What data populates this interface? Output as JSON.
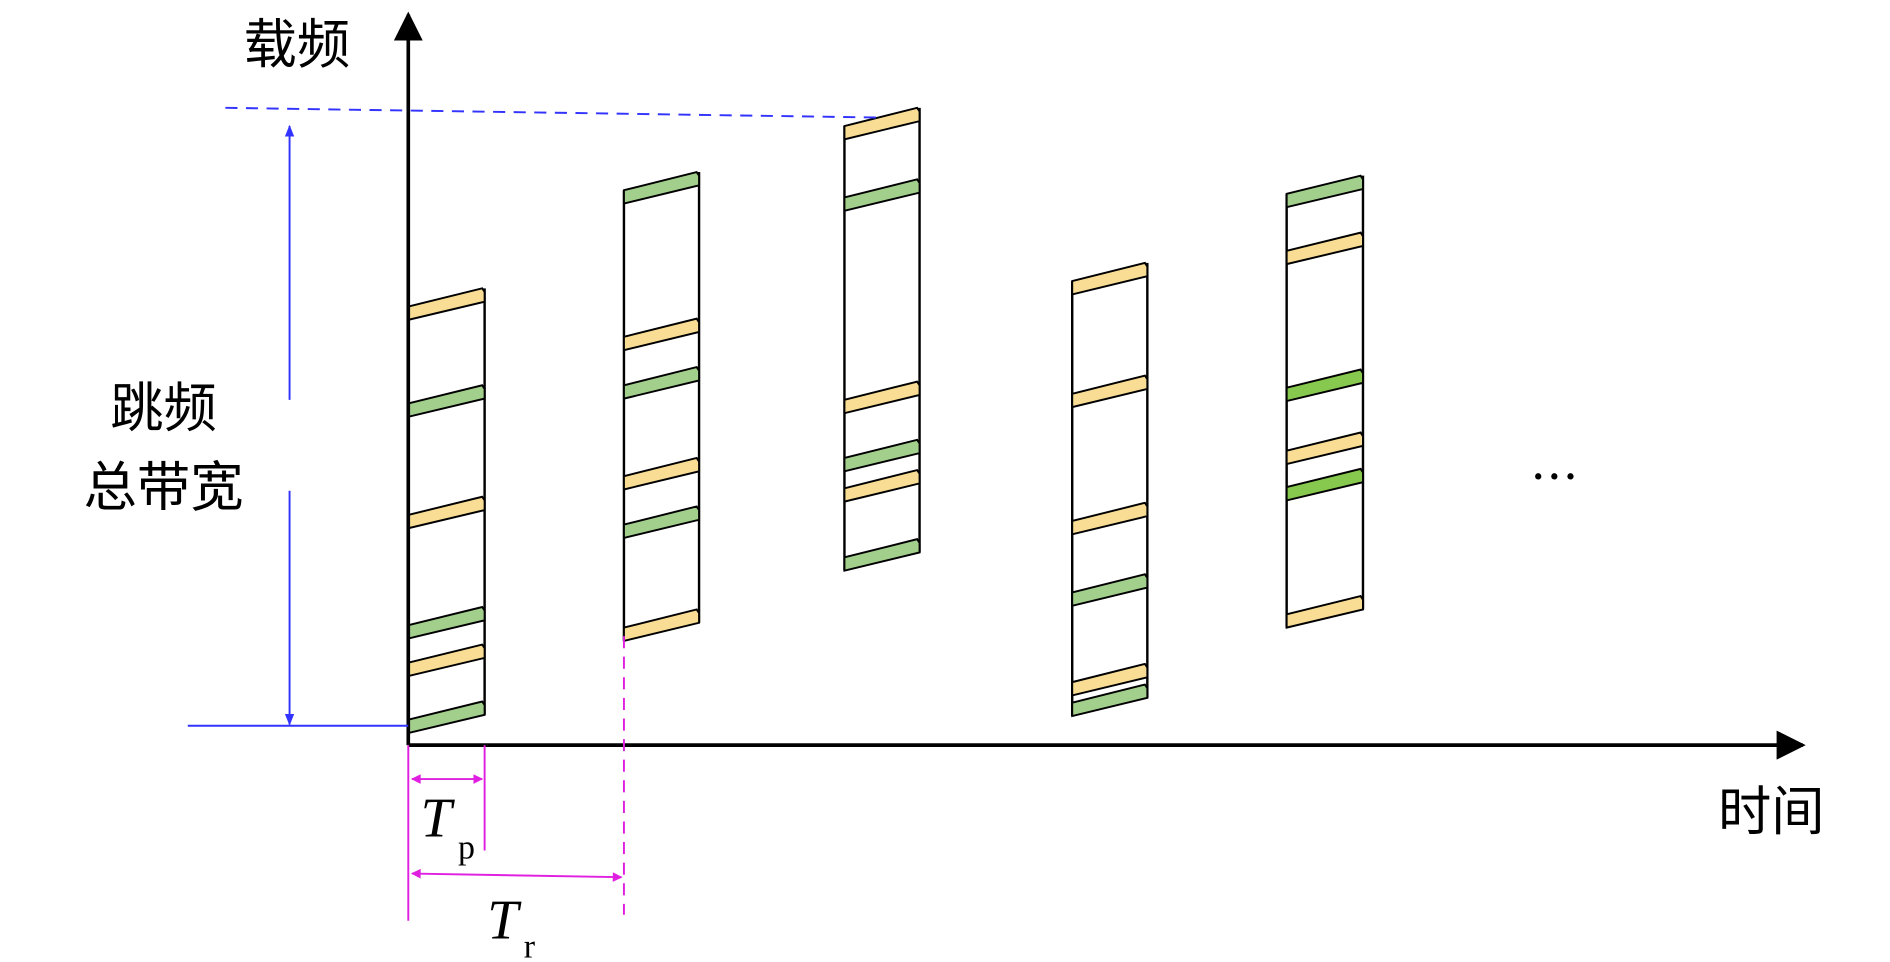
{
  "labels": {
    "y_axis": "载频",
    "x_axis": "时间",
    "bandwidth": [
      "跳频",
      "总带宽"
    ],
    "tp": {
      "main": "T",
      "sub": "p"
    },
    "tr": {
      "main": "T",
      "sub": "r"
    },
    "ellipsis": "…"
  }
}
